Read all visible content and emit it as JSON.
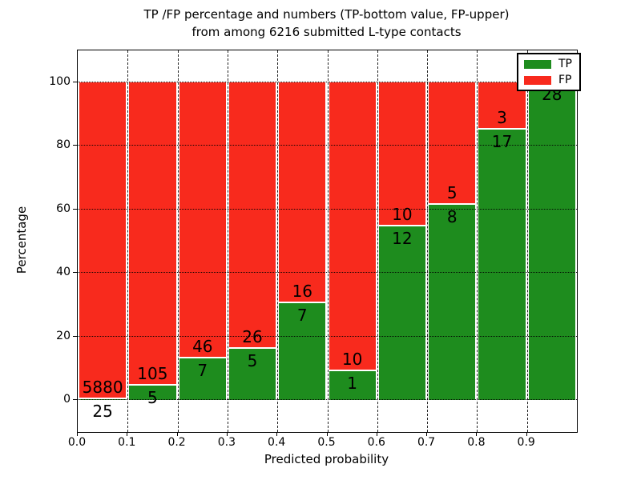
{
  "title": {
    "line1": "TP /FP percentage and numbers (TP-bottom value, FP-upper)",
    "line2": "from among 6216 submitted L-type contacts"
  },
  "chart_data": {
    "type": "bar",
    "stacked": true,
    "title": "TP /FP percentage and numbers (TP-bottom value, FP-upper) from among 6216 submitted L-type contacts",
    "xlabel": "Predicted probability",
    "ylabel": "Percentage",
    "total_contacts": 6216,
    "bin_width": 0.1,
    "bin_starts": [
      0.0,
      0.1,
      0.2,
      0.3,
      0.4,
      0.5,
      0.6,
      0.7,
      0.8,
      0.9
    ],
    "series": [
      {
        "name": "TP",
        "color": "#1e8c1e",
        "counts": [
          25,
          5,
          7,
          5,
          7,
          1,
          12,
          8,
          17,
          28
        ]
      },
      {
        "name": "FP",
        "color": "#f82a1d",
        "counts": [
          5880,
          105,
          46,
          26,
          16,
          10,
          10,
          5,
          3,
          0
        ]
      }
    ],
    "bar_heights_are": "percent of TP within each bin total, stacked with FP to 100%",
    "tp_percent_per_bin": [
      0.42,
      4.55,
      13.21,
      16.13,
      30.43,
      9.09,
      54.55,
      61.54,
      85.0,
      100.0
    ],
    "xlim": [
      0.0,
      1.0
    ],
    "ylim": [
      -10,
      110
    ],
    "yticks": [
      "0",
      "20",
      "40",
      "60",
      "80",
      "100"
    ],
    "ytick_values": [
      0,
      20,
      40,
      60,
      80,
      100
    ],
    "xtick_labels": [
      "0.0",
      "0.1",
      "0.2",
      "0.3",
      "0.4",
      "0.5",
      "0.6",
      "0.7",
      "0.8",
      "0.9"
    ],
    "grid": true,
    "legend": {
      "position": "upper right",
      "entries": [
        {
          "label": "TP",
          "color": "#1e8c1e"
        },
        {
          "label": "FP",
          "color": "#f82a1d"
        }
      ]
    }
  }
}
